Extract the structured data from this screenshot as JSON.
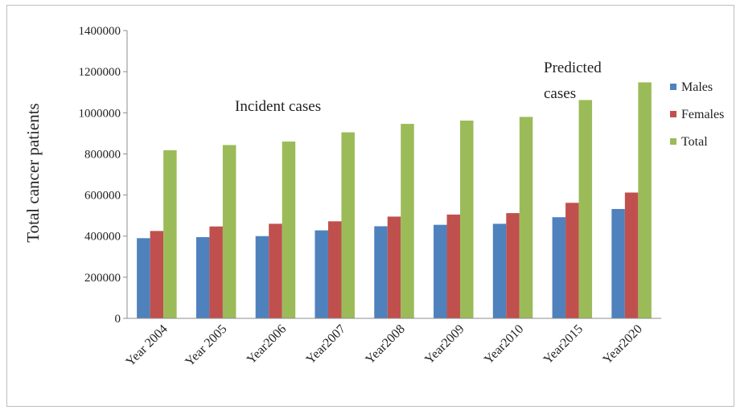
{
  "chart_data": {
    "type": "bar",
    "title": "",
    "xlabel": "",
    "ylabel": "Total cancer patients",
    "ylim": [
      0,
      1400000
    ],
    "yticks": [
      "0",
      "200000",
      "400000",
      "600000",
      "800000",
      "1000000",
      "1200000",
      "1400000"
    ],
    "grid": false,
    "legend_position": "right",
    "categories": [
      "Year 2004",
      "Year 2005",
      "Year2006",
      "Year2007",
      "Year2008",
      "Year2009",
      "Year2010",
      "Year2015",
      "Year2020"
    ],
    "series": [
      {
        "name": "Males",
        "color": "#4f81bd",
        "values": [
          390000,
          395000,
          400000,
          428000,
          448000,
          455000,
          460000,
          492000,
          532000
        ]
      },
      {
        "name": "Females",
        "color": "#c0504d",
        "values": [
          425000,
          447000,
          460000,
          472000,
          495000,
          505000,
          512000,
          562000,
          612000
        ]
      },
      {
        "name": "Total",
        "color": "#9bbb59",
        "values": [
          818000,
          843000,
          860000,
          905000,
          946000,
          962000,
          980000,
          1062000,
          1148000
        ]
      }
    ],
    "annotations": [
      {
        "text": "Incident cases"
      },
      {
        "text": "Predicted"
      },
      {
        "text": "cases"
      }
    ]
  }
}
